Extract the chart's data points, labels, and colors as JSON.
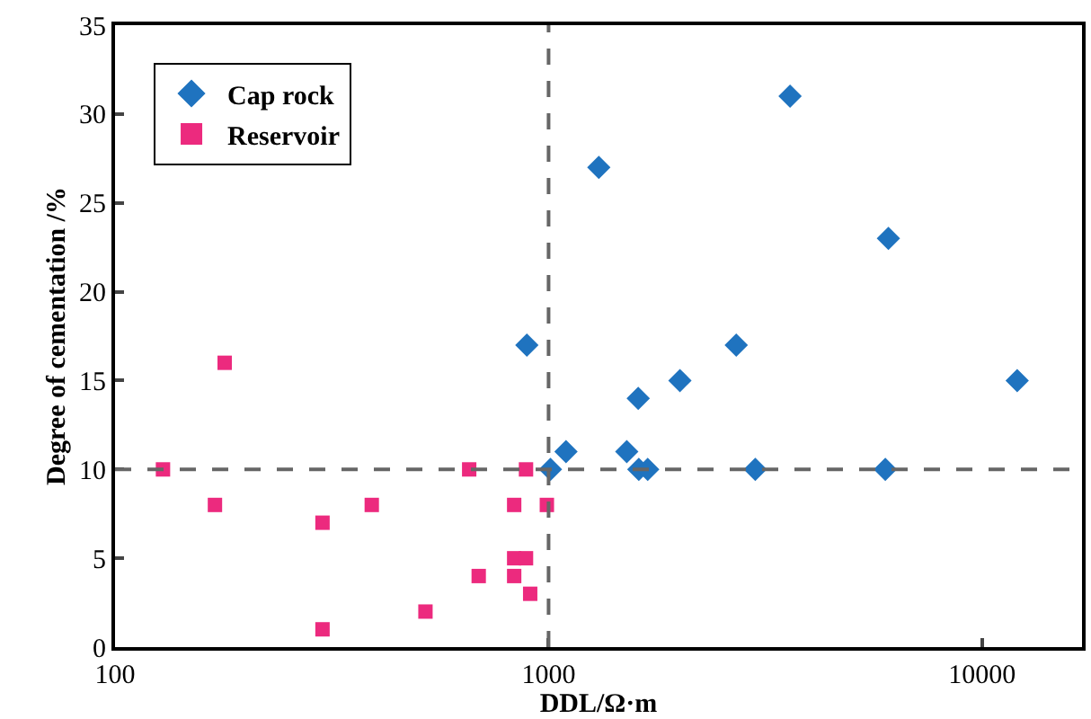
{
  "chart_data": {
    "type": "scatter",
    "xlabel": "DDL/Ω·m",
    "ylabel": "Degree of cementation /%",
    "log": "x",
    "xlim": [
      100,
      17000
    ],
    "xticks": [
      100,
      1000,
      10000
    ],
    "ylim": [
      0,
      35
    ],
    "yticks": [
      0,
      5,
      10,
      15,
      20,
      25,
      30,
      35
    ],
    "legend": "top left",
    "series": [
      {
        "name": "Cap rock",
        "color": "#1f73bf",
        "marker": "diamond",
        "x": [
          891,
          1010,
          1097,
          1306,
          1515,
          1615,
          1693,
          1610,
          2009,
          2710,
          2998,
          3606,
          6080,
          5980,
          12050
        ],
        "values": [
          17,
          10,
          11,
          27,
          11,
          10,
          10,
          14,
          15,
          17,
          10,
          31,
          23,
          10,
          15
        ]
      },
      {
        "name": "Reservoir",
        "color": "#ec2a7e",
        "marker": "square",
        "x": [
          129,
          179,
          170,
          301,
          301,
          391,
          520,
          656,
          690,
          833,
          833,
          833,
          887,
          907,
          887,
          991
        ],
        "values": [
          10,
          16,
          8,
          7,
          1,
          8,
          2,
          10,
          4,
          8,
          5,
          4,
          5,
          3,
          10,
          8
        ]
      }
    ],
    "ref_lines": [
      {
        "axis": "x",
        "value": 1000,
        "color": "#666666",
        "line_style": "dashed"
      },
      {
        "axis": "y",
        "value": 10,
        "color": "#666666",
        "line_style": "dashed"
      }
    ]
  }
}
